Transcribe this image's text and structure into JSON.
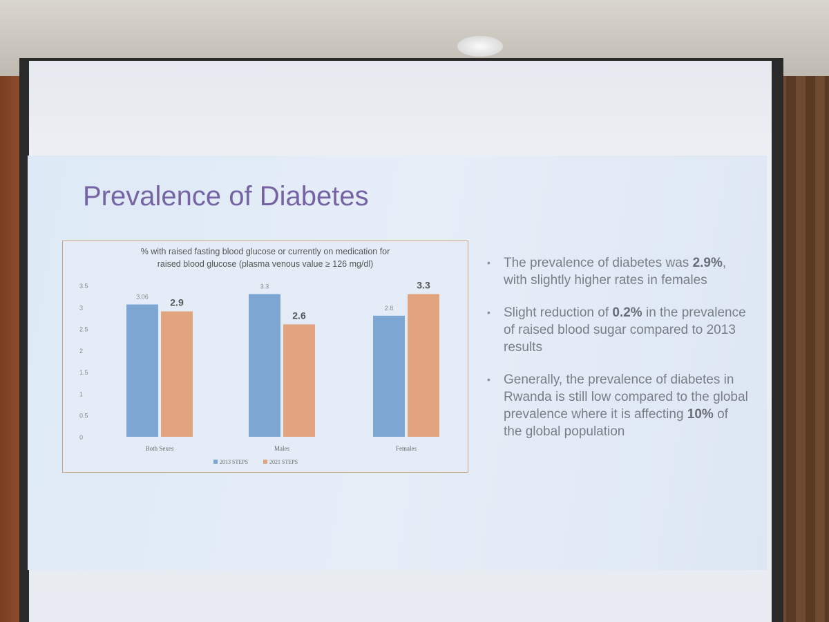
{
  "slide": {
    "title": "Prevalence of Diabetes"
  },
  "chart_data": {
    "type": "bar",
    "title_lines": [
      "% with raised fasting blood glucose or currently on medication for",
      "raised blood glucose (plasma venous value ≥ 126 mg/dl)"
    ],
    "categories": [
      "Both Sexes",
      "Males",
      "Females"
    ],
    "series": [
      {
        "name": "2013 STEPS",
        "values": [
          3.06,
          3.3,
          2.8
        ],
        "labels": [
          "3.06",
          "3.3",
          "2.8"
        ],
        "color": "#7ea6d3"
      },
      {
        "name": "2021 STEPS",
        "values": [
          2.9,
          2.6,
          3.3
        ],
        "labels": [
          "2.9",
          "2.6",
          "3.3"
        ],
        "color": "#e2a47f"
      }
    ],
    "yticks": [
      "0",
      "0.5",
      "1",
      "1.5",
      "2",
      "2.5",
      "3",
      "3.5"
    ],
    "ylim": [
      0,
      3.5
    ],
    "grid": false,
    "legend": "bottom"
  },
  "bullets": [
    {
      "parts": [
        {
          "t": "The prevalence of diabetes was ",
          "b": false
        },
        {
          "t": "2.9%",
          "b": true
        },
        {
          "t": ", with slightly higher rates in females",
          "b": false
        }
      ]
    },
    {
      "parts": [
        {
          "t": "Slight reduction of ",
          "b": false
        },
        {
          "t": "0.2%",
          "b": true
        },
        {
          "t": " in the prevalence of raised blood sugar compared to 2013 results",
          "b": false
        }
      ]
    },
    {
      "parts": [
        {
          "t": "Generally, the prevalence of diabetes in Rwanda is still low compared to the global prevalence where it is affecting ",
          "b": false
        },
        {
          "t": "10%",
          "b": true
        },
        {
          "t": " of the global population",
          "b": false
        }
      ]
    }
  ]
}
